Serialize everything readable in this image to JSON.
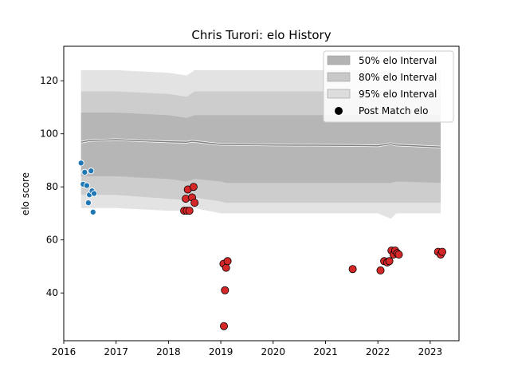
{
  "chart_data": {
    "type": "scatter",
    "title": "Chris Turori: elo History",
    "xlabel": "",
    "ylabel": "elo score",
    "xlim": [
      2016.0,
      2023.55
    ],
    "ylim": [
      22,
      133
    ],
    "x_ticks": [
      2016,
      2017,
      2018,
      2019,
      2020,
      2021,
      2022,
      2023
    ],
    "x_tick_labels": [
      "2016",
      "2017",
      "2018",
      "2019",
      "2020",
      "2021",
      "2022",
      "2023"
    ],
    "y_ticks": [
      40,
      60,
      80,
      100,
      120
    ],
    "y_tick_labels": [
      "40",
      "60",
      "80",
      "100",
      "120"
    ],
    "grid": false,
    "legend_position": "top-right",
    "legend": [
      {
        "label": "50% elo Interval",
        "kind": "band",
        "color": "#b3b3b3"
      },
      {
        "label": "80% elo Interval",
        "kind": "band",
        "color": "#c8c8c8"
      },
      {
        "label": "95% elo Interval",
        "kind": "band",
        "color": "#dddddd"
      },
      {
        "label": "Post Match elo",
        "kind": "marker",
        "color": "#000000"
      }
    ],
    "bands": {
      "x": [
        2016.33,
        2016.5,
        2017.0,
        2018.0,
        2018.35,
        2018.5,
        2019.0,
        2019.1,
        2020.0,
        2021.5,
        2022.0,
        2022.25,
        2022.35,
        2023.2
      ],
      "q50_lo": [
        84.0,
        84.0,
        84.0,
        83.0,
        82.0,
        83.0,
        82.0,
        81.5,
        81.5,
        81.5,
        81.5,
        81.5,
        82.0,
        81.5
      ],
      "q50_hi": [
        108.0,
        108.0,
        108.0,
        107.0,
        106.0,
        107.0,
        107.0,
        107.0,
        107.0,
        107.0,
        107.0,
        107.0,
        107.0,
        107.0
      ],
      "q80_lo": [
        77.0,
        77.0,
        77.0,
        75.5,
        75.0,
        76.0,
        74.5,
        74.0,
        74.0,
        74.0,
        74.0,
        74.0,
        74.0,
        74.0
      ],
      "q80_hi": [
        116.0,
        116.0,
        116.0,
        115.0,
        114.0,
        116.0,
        116.0,
        116.0,
        116.0,
        116.0,
        116.0,
        116.0,
        116.0,
        116.0
      ],
      "q95_lo": [
        72.0,
        72.0,
        72.0,
        71.0,
        71.0,
        72.0,
        70.0,
        70.0,
        70.0,
        70.0,
        70.0,
        68.0,
        70.0,
        70.0
      ],
      "q95_hi": [
        124.0,
        124.0,
        124.0,
        123.0,
        122.0,
        124.0,
        124.0,
        124.0,
        124.0,
        124.0,
        124.0,
        124.0,
        124.0,
        124.0
      ]
    },
    "mean_line": {
      "x": [
        2016.33,
        2016.5,
        2017.0,
        2018.0,
        2018.35,
        2018.45,
        2019.0,
        2019.1,
        2020.0,
        2021.5,
        2022.0,
        2022.25,
        2022.35,
        2023.2
      ],
      "y": [
        96.8,
        97.5,
        97.8,
        97.0,
        96.8,
        97.2,
        96.0,
        96.0,
        95.8,
        95.6,
        95.5,
        96.3,
        95.8,
        95.0
      ]
    },
    "series": [
      {
        "color": "#1f77b4",
        "points": [
          [
            2016.33,
            89.0
          ],
          [
            2016.37,
            81.0
          ],
          [
            2016.4,
            85.5
          ],
          [
            2016.44,
            80.5
          ],
          [
            2016.47,
            74.0
          ],
          [
            2016.49,
            77.0
          ],
          [
            2016.52,
            86.0
          ],
          [
            2016.54,
            78.5
          ],
          [
            2016.56,
            70.5
          ],
          [
            2016.58,
            77.5
          ]
        ]
      },
      {
        "color": "#d62728",
        "points": [
          [
            2018.3,
            71.0
          ],
          [
            2018.33,
            75.5
          ],
          [
            2018.35,
            71.0
          ],
          [
            2018.37,
            79.0
          ],
          [
            2018.4,
            71.0
          ],
          [
            2018.45,
            76.0
          ],
          [
            2018.48,
            80.0
          ],
          [
            2018.5,
            74.0
          ],
          [
            2019.05,
            51.0
          ],
          [
            2019.08,
            41.0
          ],
          [
            2019.1,
            49.5
          ],
          [
            2019.13,
            52.0
          ],
          [
            2019.06,
            27.5
          ],
          [
            2021.52,
            49.0
          ],
          [
            2022.05,
            48.5
          ],
          [
            2022.12,
            52.0
          ],
          [
            2022.18,
            51.5
          ],
          [
            2022.22,
            52.0
          ],
          [
            2022.26,
            56.0
          ],
          [
            2022.3,
            54.5
          ],
          [
            2022.33,
            56.0
          ],
          [
            2022.37,
            55.0
          ],
          [
            2022.4,
            54.5
          ],
          [
            2023.15,
            55.5
          ],
          [
            2023.2,
            54.5
          ],
          [
            2023.23,
            55.5
          ]
        ]
      }
    ]
  }
}
